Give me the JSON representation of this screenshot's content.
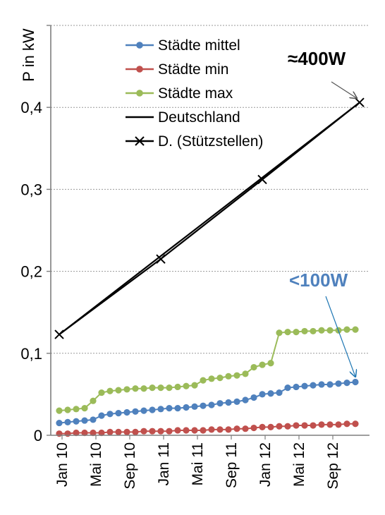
{
  "chart_data": {
    "type": "line",
    "title": "",
    "xlabel": "",
    "ylabel": "P in kW",
    "ylim": [
      0,
      0.5
    ],
    "yticks": [
      0,
      0.1,
      0.2,
      0.3,
      0.4
    ],
    "ytick_labels": [
      "0",
      "0,1",
      "0,2",
      "0,3",
      "0,4"
    ],
    "x_categories": [
      "Jan 10",
      "Mai 10",
      "Sep 10",
      "Jan 11",
      "Mai 11",
      "Sep 11",
      "Jan 12",
      "Mai 12",
      "Sep 12"
    ],
    "x_month_index_of_ticks": [
      0,
      4,
      8,
      12,
      16,
      20,
      24,
      28,
      32
    ],
    "x_range_months": [
      0,
      36
    ],
    "grid": "horizontal-dotted",
    "legend_position": "top",
    "series": [
      {
        "name": "Städte mittel",
        "color": "#4f81bd",
        "marker": "circle",
        "x": [
          0,
          1,
          2,
          3,
          4,
          5,
          6,
          7,
          8,
          9,
          10,
          11,
          12,
          13,
          14,
          15,
          16,
          17,
          18,
          19,
          20,
          21,
          22,
          23,
          24,
          25,
          26,
          27,
          28,
          29,
          30,
          31,
          32,
          33,
          34,
          35
        ],
        "values": [
          0.015,
          0.016,
          0.017,
          0.018,
          0.019,
          0.024,
          0.026,
          0.027,
          0.028,
          0.029,
          0.03,
          0.031,
          0.032,
          0.033,
          0.033,
          0.034,
          0.035,
          0.036,
          0.037,
          0.039,
          0.04,
          0.041,
          0.043,
          0.046,
          0.05,
          0.051,
          0.052,
          0.058,
          0.059,
          0.06,
          0.061,
          0.062,
          0.062,
          0.063,
          0.064,
          0.065
        ]
      },
      {
        "name": "Städte min",
        "color": "#c0504d",
        "marker": "circle",
        "x": [
          0,
          1,
          2,
          3,
          4,
          5,
          6,
          7,
          8,
          9,
          10,
          11,
          12,
          13,
          14,
          15,
          16,
          17,
          18,
          19,
          20,
          21,
          22,
          23,
          24,
          25,
          26,
          27,
          28,
          29,
          30,
          31,
          32,
          33,
          34,
          35
        ],
        "values": [
          0.002,
          0.002,
          0.003,
          0.003,
          0.003,
          0.003,
          0.004,
          0.004,
          0.004,
          0.004,
          0.005,
          0.005,
          0.005,
          0.005,
          0.006,
          0.006,
          0.006,
          0.006,
          0.007,
          0.007,
          0.007,
          0.008,
          0.008,
          0.009,
          0.01,
          0.01,
          0.011,
          0.011,
          0.012,
          0.012,
          0.012,
          0.013,
          0.013,
          0.013,
          0.014,
          0.014
        ]
      },
      {
        "name": "Städte max",
        "color": "#9bbb59",
        "marker": "circle",
        "x": [
          0,
          1,
          2,
          3,
          4,
          5,
          6,
          7,
          8,
          9,
          10,
          11,
          12,
          13,
          14,
          15,
          16,
          17,
          18,
          19,
          20,
          21,
          22,
          23,
          24,
          25,
          26,
          27,
          28,
          29,
          30,
          31,
          32,
          33,
          34,
          35
        ],
        "values": [
          0.03,
          0.031,
          0.032,
          0.033,
          0.042,
          0.052,
          0.054,
          0.055,
          0.056,
          0.057,
          0.057,
          0.058,
          0.058,
          0.058,
          0.059,
          0.06,
          0.061,
          0.067,
          0.069,
          0.07,
          0.072,
          0.073,
          0.075,
          0.083,
          0.086,
          0.088,
          0.125,
          0.126,
          0.126,
          0.127,
          0.127,
          0.128,
          0.128,
          0.128,
          0.129,
          0.129
        ]
      },
      {
        "name": "Deutschland",
        "color": "#000000",
        "marker": "none",
        "x": [
          0,
          35.5
        ],
        "values": [
          0.123,
          0.406
        ]
      },
      {
        "name": "D. (Stützstellen)",
        "color": "#000000",
        "marker": "x",
        "x": [
          0,
          12,
          24,
          35.5
        ],
        "values": [
          0.123,
          0.215,
          0.312,
          0.406
        ]
      }
    ],
    "annotations": [
      {
        "text": "≈400W",
        "color": "#000000",
        "points_to": {
          "x": 35.5,
          "y": 0.406
        }
      },
      {
        "text": "<100W",
        "color": "#4f81bd",
        "points_to": {
          "x": 35.5,
          "y": 0.068
        }
      }
    ]
  }
}
